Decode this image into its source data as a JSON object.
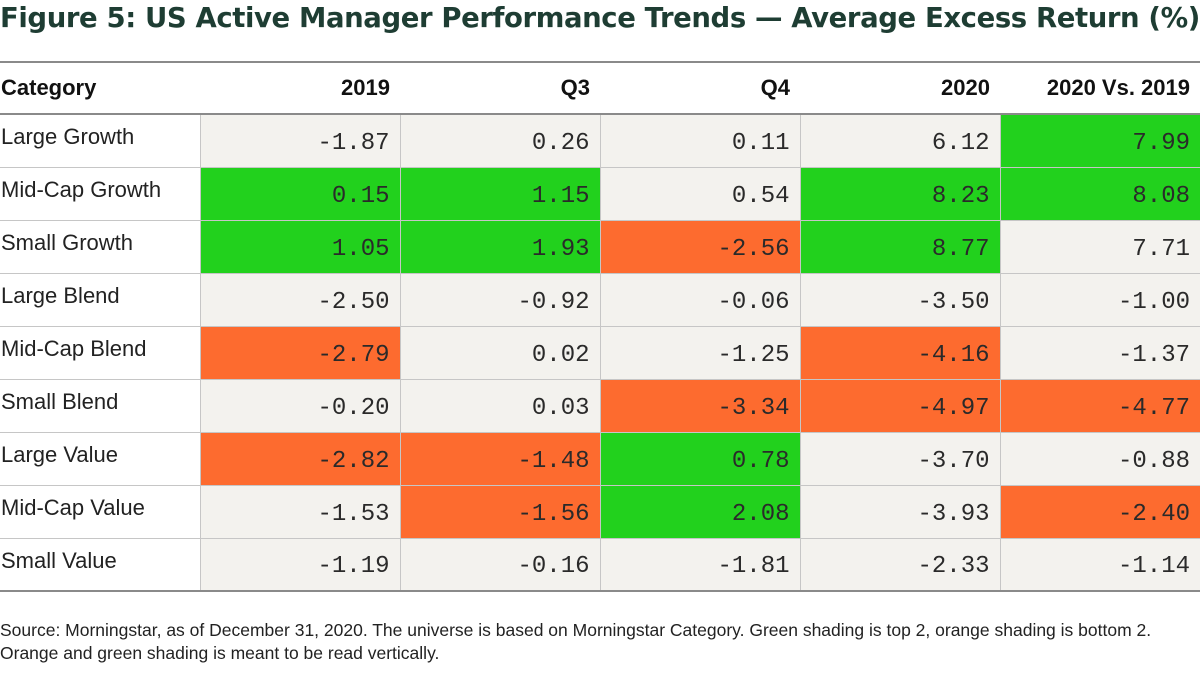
{
  "title": "Figure 5: US Active Manager Performance Trends — Average Excess Return (%)",
  "source_note": "Source: Morningstar, as of December 31, 2020. The universe is based on Morningstar Category. Green shading is top 2, orange shading is bottom 2. Orange and green shading is meant to be read vertically.",
  "colors": {
    "top2_green": "#22d11d",
    "bottom2_orange": "#fd6b2f",
    "neutral_cell": "#f3f2ee",
    "title_color": "#1e3d33"
  },
  "chart_data": {
    "type": "table",
    "title": "Figure 5: US Active Manager Performance Trends — Average Excess Return (%)",
    "columns": [
      "Category",
      "2019",
      "Q3",
      "Q4",
      "2020",
      "2020 Vs. 2019"
    ],
    "rows": [
      {
        "category": "Large Growth",
        "values": [
          "-1.87",
          "0.26",
          "0.11",
          "6.12",
          "7.99"
        ],
        "shading": [
          "",
          "",
          "",
          "",
          "green"
        ]
      },
      {
        "category": "Mid-Cap Growth",
        "values": [
          "0.15",
          "1.15",
          "0.54",
          "8.23",
          "8.08"
        ],
        "shading": [
          "green",
          "green",
          "",
          "green",
          "green"
        ]
      },
      {
        "category": "Small Growth",
        "values": [
          "1.05",
          "1.93",
          "-2.56",
          "8.77",
          "7.71"
        ],
        "shading": [
          "green",
          "green",
          "orange",
          "green",
          ""
        ]
      },
      {
        "category": "Large Blend",
        "values": [
          "-2.50",
          "-0.92",
          "-0.06",
          "-3.50",
          "-1.00"
        ],
        "shading": [
          "",
          "",
          "",
          "",
          ""
        ]
      },
      {
        "category": "Mid-Cap Blend",
        "values": [
          "-2.79",
          "0.02",
          "-1.25",
          "-4.16",
          "-1.37"
        ],
        "shading": [
          "orange",
          "",
          "",
          "orange",
          ""
        ]
      },
      {
        "category": "Small Blend",
        "values": [
          "-0.20",
          "0.03",
          "-3.34",
          "-4.97",
          "-4.77"
        ],
        "shading": [
          "",
          "",
          "orange",
          "orange",
          "orange"
        ]
      },
      {
        "category": "Large Value",
        "values": [
          "-2.82",
          "-1.48",
          "0.78",
          "-3.70",
          "-0.88"
        ],
        "shading": [
          "orange",
          "orange",
          "green",
          "",
          ""
        ]
      },
      {
        "category": "Mid-Cap Value",
        "values": [
          "-1.53",
          "-1.56",
          "2.08",
          "-3.93",
          "-2.40"
        ],
        "shading": [
          "",
          "orange",
          "green",
          "",
          "orange"
        ]
      },
      {
        "category": "Small Value",
        "values": [
          "-1.19",
          "-0.16",
          "-1.81",
          "-2.33",
          "-1.14"
        ],
        "shading": [
          "",
          "",
          "",
          "",
          ""
        ]
      }
    ]
  }
}
